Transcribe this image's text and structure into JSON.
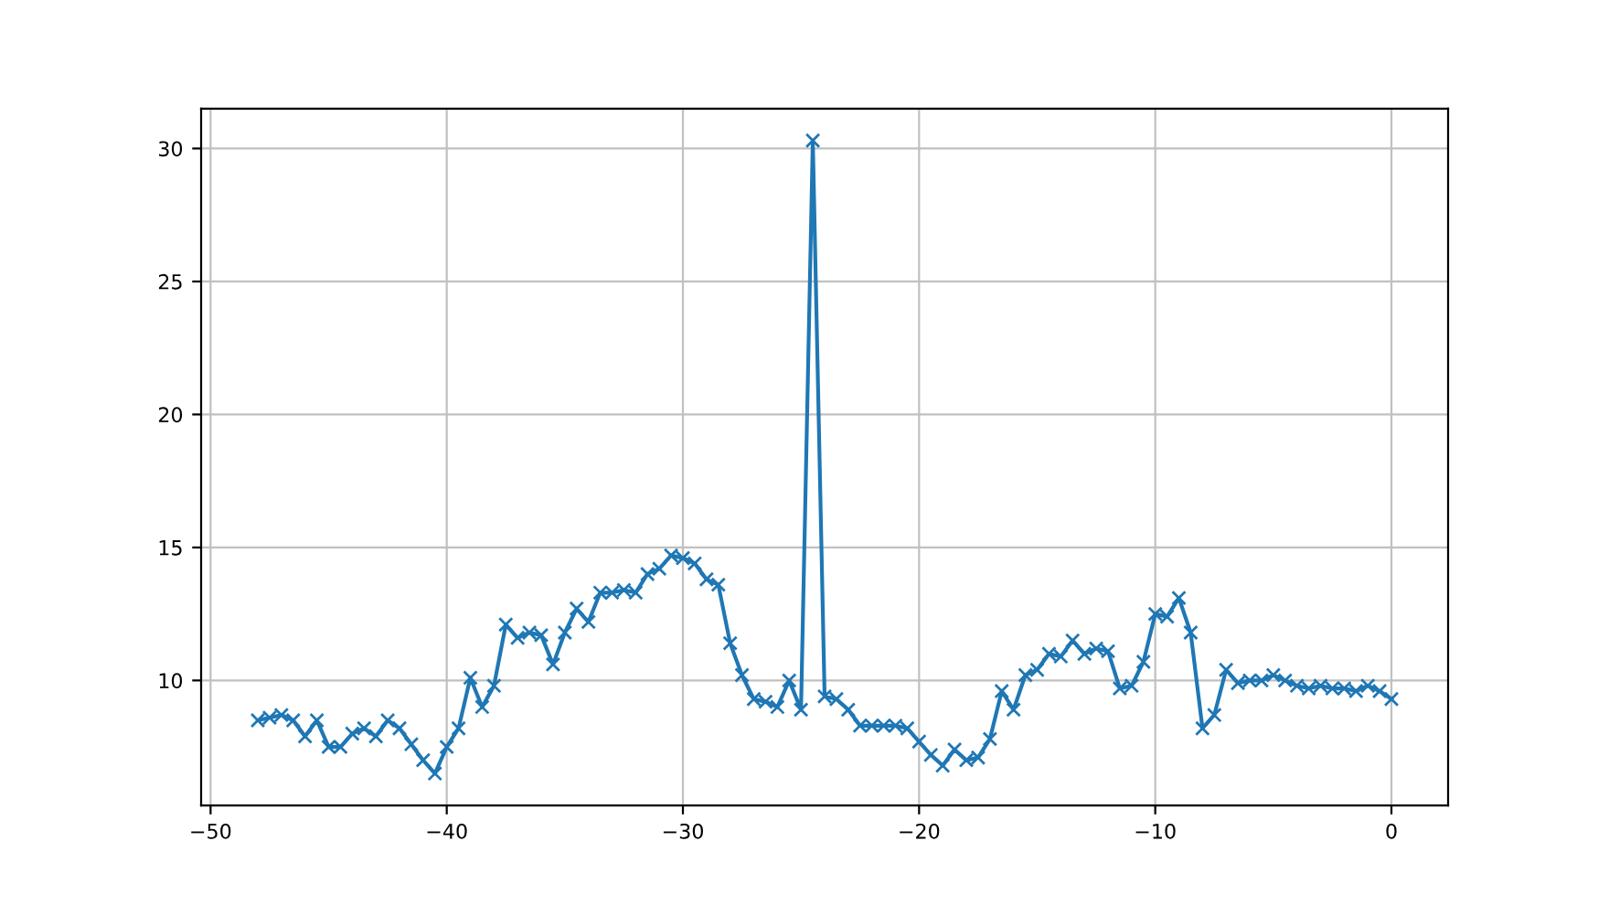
{
  "chart_data": {
    "type": "line",
    "x": [
      -48,
      -47.5,
      -47,
      -46.5,
      -46,
      -45.5,
      -45,
      -44.5,
      -44,
      -43.5,
      -43,
      -42.5,
      -42,
      -41.5,
      -41,
      -40.5,
      -40,
      -39.5,
      -39,
      -38.5,
      -38,
      -37.5,
      -37,
      -36.5,
      -36,
      -35.5,
      -35,
      -34.5,
      -34,
      -33.5,
      -33,
      -32.5,
      -32,
      -31.5,
      -31,
      -30.5,
      -30,
      -29.5,
      -29,
      -28.5,
      -28,
      -27.5,
      -27,
      -26.5,
      -26,
      -25.5,
      -25,
      -24.5,
      -24,
      -23.5,
      -23,
      -22.5,
      -22,
      -21.5,
      -21,
      -20.5,
      -20,
      -19.5,
      -19,
      -18.5,
      -18,
      -17.5,
      -17,
      -16.5,
      -16,
      -15.5,
      -15,
      -14.5,
      -14,
      -13.5,
      -13,
      -12.5,
      -12,
      -11.5,
      -11,
      -10.5,
      -10,
      -9.5,
      -9,
      -8.5,
      -8,
      -7.5,
      -7,
      -6.5,
      -6,
      -5.5,
      -5,
      -4.5,
      -4,
      -3.5,
      -3,
      -2.5,
      -2,
      -1.5,
      -1,
      -0.5,
      0
    ],
    "series": [
      {
        "color": "#1f77b4",
        "values": [
          8.5,
          8.6,
          8.7,
          8.5,
          7.9,
          8.5,
          7.5,
          7.5,
          8.0,
          8.2,
          7.9,
          8.5,
          8.2,
          7.6,
          7.0,
          6.5,
          7.5,
          8.2,
          10.1,
          9.0,
          9.8,
          12.1,
          11.6,
          11.8,
          11.7,
          10.6,
          11.8,
          12.7,
          12.2,
          13.3,
          13.3,
          13.4,
          13.3,
          14.0,
          14.2,
          14.7,
          14.6,
          14.4,
          13.8,
          13.6,
          11.4,
          10.2,
          9.3,
          9.2,
          9.0,
          10.0,
          8.9,
          30.3,
          9.4,
          9.3,
          8.9,
          8.3,
          8.3,
          8.3,
          8.3,
          8.2,
          7.7,
          7.2,
          6.8,
          7.4,
          7.0,
          7.1,
          7.8,
          9.6,
          8.9,
          10.2,
          10.4,
          11.0,
          10.9,
          11.5,
          11.0,
          11.2,
          11.1,
          9.7,
          9.8,
          10.7,
          12.5,
          12.4,
          13.1,
          11.8,
          8.2,
          8.7,
          10.4,
          9.9,
          10.0,
          10.0,
          10.2,
          10.0,
          9.8,
          9.7,
          9.8,
          9.7,
          9.7,
          9.6,
          9.8,
          9.6,
          9.3
        ]
      }
    ],
    "xlim": [
      -50.4,
      2.4
    ],
    "xticks": [
      {
        "value": -50,
        "label": "−50"
      },
      {
        "value": -40,
        "label": "−40"
      },
      {
        "value": -30,
        "label": "−30"
      },
      {
        "value": -20,
        "label": "−20"
      },
      {
        "value": -10,
        "label": "−10"
      },
      0
    ],
    "ylim": [
      5.3,
      31.5
    ],
    "yticks": [
      10,
      15,
      20,
      25,
      30
    ],
    "grid": true,
    "marker": "cross",
    "line_style": "solid"
  }
}
